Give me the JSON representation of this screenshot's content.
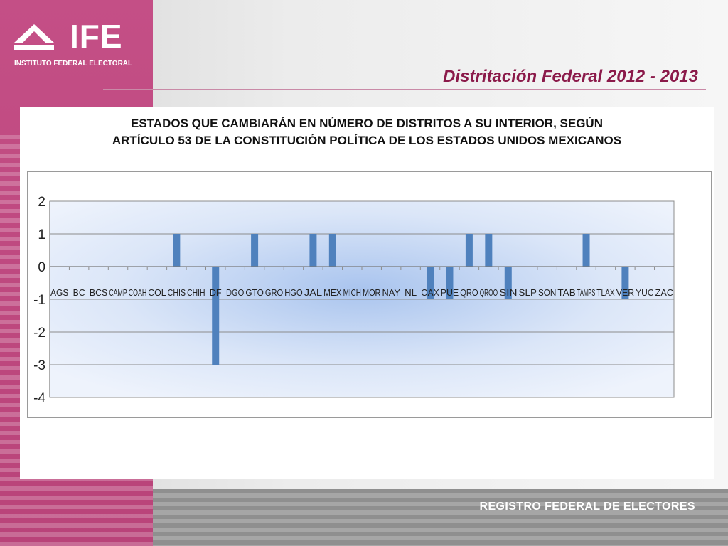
{
  "header": {
    "logo_text": "IFE",
    "logo_subtitle": "INSTITUTO FEDERAL ELECTORAL",
    "page_title": "Distritación Federal 2012 - 2013"
  },
  "chart_title_lines": [
    "ESTADOS QUE CAMBIARÁN EN NÚMERO DE DISTRITOS A SU INTERIOR, SEGÚN",
    "ARTÍCULO 53 DE LA CONSTITUCIÓN POLÍTICA DE LOS ESTADOS UNIDOS MEXICANOS"
  ],
  "footer": {
    "text": "REGISTRO FEDERAL DE ELECTORES"
  },
  "colors": {
    "bar": "#4f81bd",
    "title": "#8b1a4a",
    "pink": "#c44f86"
  },
  "chart_data": {
    "type": "bar",
    "title": "ESTADOS QUE CAMBIARÁN EN NÚMERO DE DISTRITOS A SU INTERIOR, SEGÚN ARTÍCULO 53 DE LA CONSTITUCIÓN POLÍTICA DE LOS ESTADOS UNIDOS MEXICANOS",
    "categories": [
      "AGS",
      "BC",
      "BCS",
      "CAMP",
      "COAH",
      "COL",
      "CHIS",
      "CHIH",
      "DF",
      "DGO",
      "GTO",
      "GRO",
      "HGO",
      "JAL",
      "MEX",
      "MICH",
      "MOR",
      "NAY",
      "NL",
      "OAX",
      "PUE",
      "QRO",
      "QROO",
      "SIN",
      "SLP",
      "SON",
      "TAB",
      "TAMPS",
      "TLAX",
      "VER",
      "YUC",
      "ZAC"
    ],
    "values": [
      0,
      0,
      0,
      0,
      0,
      0,
      1,
      0,
      -3,
      0,
      1,
      0,
      0,
      1,
      1,
      0,
      0,
      0,
      0,
      -1,
      -1,
      1,
      1,
      -1,
      0,
      0,
      0,
      1,
      0,
      -1,
      0,
      0
    ],
    "ylim": [
      -4,
      2
    ],
    "yticks": [
      2,
      1,
      0,
      -1,
      -2,
      -3,
      -4
    ],
    "grid": true,
    "legend": "none"
  }
}
